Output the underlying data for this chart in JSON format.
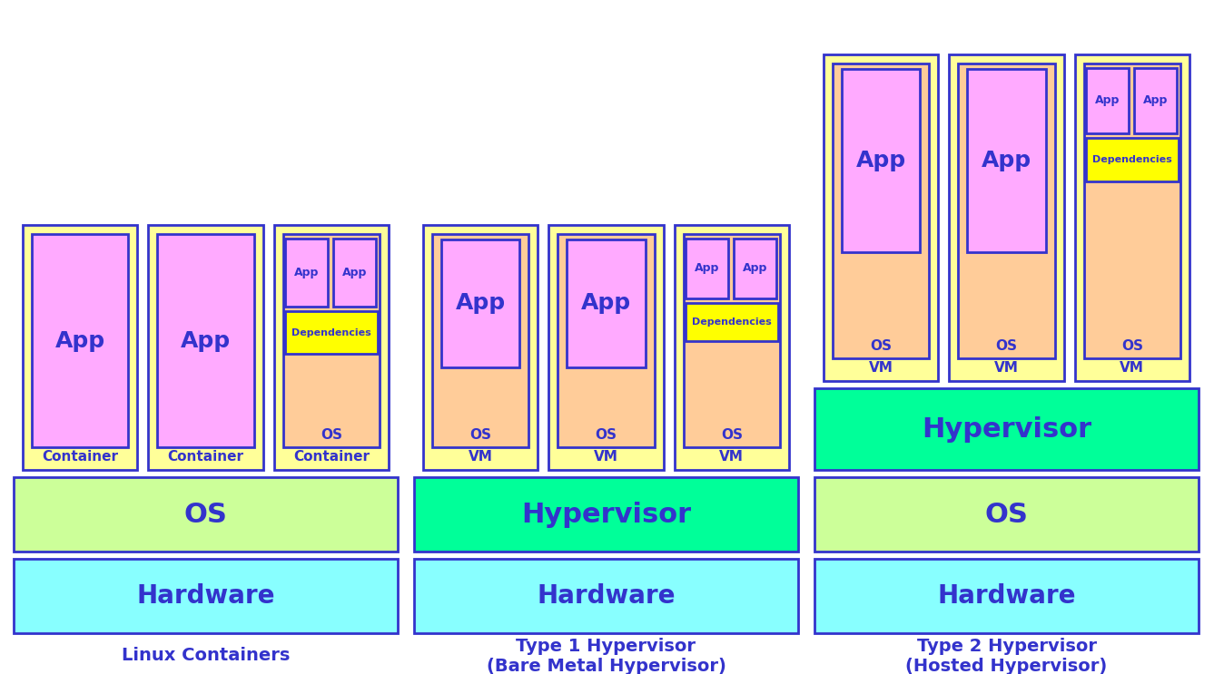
{
  "bg_color": "#ffffff",
  "colors": {
    "hardware": "#88ffff",
    "os_green": "#ccff99",
    "hypervisor_green": "#00ff99",
    "vm_yellow": "#ffff99",
    "os_orange": "#ffcc99",
    "app_pink": "#ffaaff",
    "dependencies_yellow": "#ffff00",
    "border_blue": "#3333cc",
    "text_blue": "#3333cc"
  },
  "labels": {
    "hardware": "Hardware",
    "os": "OS",
    "hypervisor": "Hypervisor",
    "app": "App",
    "dependencies": "Dependencies",
    "vm": "VM",
    "container": "Container",
    "linux_containers": "Linux Containers",
    "type1": "Type 1 Hypervisor\n(Bare Metal Hypervisor)",
    "type2": "Type 2 Hypervisor\n(Hosted Hypervisor)"
  }
}
